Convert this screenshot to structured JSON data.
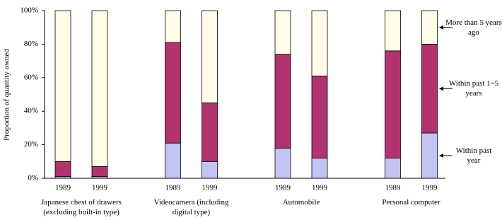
{
  "chart_data": {
    "type": "stacked_bar",
    "y_label": "Proportion of quantity owned",
    "categories": [
      "1989",
      "1999",
      "1989",
      "1999",
      "1989",
      "1999",
      "1989",
      "1999"
    ],
    "groups": [
      "Japanese chest of drawers (excluding built-in type)",
      "Videocamera (including digital type)",
      "Automobile",
      "Personal computer"
    ],
    "series": [
      {
        "name": "Within past year",
        "color": "#c4c4f4",
        "values": [
          1,
          1,
          21,
          10,
          18,
          12,
          12,
          27
        ]
      },
      {
        "name": "Within past 1~5 years",
        "color": "#b3336e",
        "values": [
          9,
          6,
          60,
          35,
          56,
          49,
          64,
          53
        ]
      },
      {
        "name": "More than 5 years ago",
        "color": "#fffde8",
        "values": [
          90,
          93,
          19,
          55,
          26,
          39,
          24,
          20
        ]
      }
    ],
    "ylim": [
      0,
      100
    ],
    "yticks": [
      {
        "value": 0,
        "label": "0%"
      },
      {
        "value": 20,
        "label": "20%"
      },
      {
        "value": 40,
        "label": "40%"
      },
      {
        "value": 60,
        "label": "60%"
      },
      {
        "value": 80,
        "label": "80%"
      },
      {
        "value": 100,
        "label": "100%"
      }
    ]
  }
}
